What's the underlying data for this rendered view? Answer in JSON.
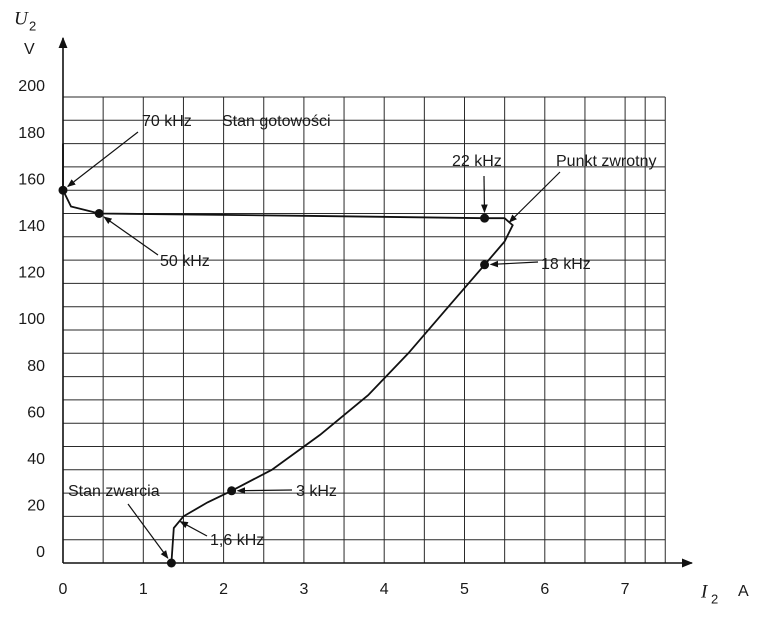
{
  "chart_data": {
    "type": "line",
    "y_label": {
      "symbol": "U",
      "subscript": "2",
      "unit": "V"
    },
    "x_label": {
      "symbol": "I",
      "subscript": "2",
      "unit": "A"
    },
    "xlim": [
      0,
      7.5
    ],
    "ylim": [
      0,
      200
    ],
    "xticks": [
      0,
      1,
      2,
      3,
      4,
      5,
      6,
      7
    ],
    "yticks": [
      0,
      20,
      40,
      60,
      80,
      100,
      120,
      140,
      160,
      180,
      200
    ],
    "grid": true,
    "series": [
      {
        "color": "#111111",
        "x": [
          1.35,
          1.38,
          1.5,
          1.8,
          2.1,
          2.6,
          3.2,
          3.8,
          4.3,
          4.8,
          5.25,
          5.5,
          5.6,
          5.5,
          5.25,
          3,
          0.45,
          0.1,
          0,
          0
        ],
        "values": [
          0,
          15,
          20,
          26,
          31,
          40,
          55,
          72,
          90,
          110,
          128,
          138,
          145,
          148,
          148,
          149,
          150,
          153,
          160,
          180
        ]
      }
    ],
    "annotations": [
      {
        "text": "70 kHz",
        "x": 0,
        "y": 160,
        "dot": true
      },
      {
        "text": "50 kHz",
        "x": 0.45,
        "y": 150,
        "dot": true
      },
      {
        "text": "22 kHz",
        "x": 5.25,
        "y": 148,
        "dot": true
      },
      {
        "text": "Punkt zwrotny",
        "x": 5.55,
        "y": 146,
        "dot": false
      },
      {
        "text": "18 kHz",
        "x": 5.25,
        "y": 128,
        "dot": true
      },
      {
        "text": "3 kHz",
        "x": 2.1,
        "y": 31,
        "dot": true
      },
      {
        "text": "Stan zwarcia",
        "x": 1.35,
        "y": 0,
        "dot": true
      },
      {
        "text": "1,6 kHz",
        "x": 1.45,
        "y": 18,
        "dot": false
      }
    ],
    "notes": [
      "Stan gotowości"
    ]
  }
}
